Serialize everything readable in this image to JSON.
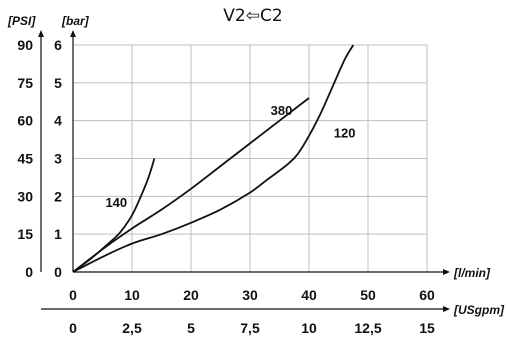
{
  "chart_data": {
    "type": "line",
    "title": "V2⇦C2",
    "x": {
      "unit": "[l/min]",
      "ticks": [
        0,
        10,
        20,
        30,
        40,
        50,
        60
      ],
      "range": [
        0,
        60
      ]
    },
    "x_secondary": {
      "unit": "[USgpm]",
      "tick_labels": [
        "0",
        "2,5",
        "5",
        "7,5",
        "10",
        "12,5",
        "15"
      ]
    },
    "y": {
      "unit": "[bar]",
      "ticks": [
        0,
        1,
        2,
        3,
        4,
        5,
        6
      ],
      "range": [
        0,
        6
      ]
    },
    "y_secondary": {
      "unit": "[PSI]",
      "tick_labels": [
        "0",
        "15",
        "30",
        "45",
        "60",
        "75",
        "90"
      ]
    },
    "grid": true,
    "series": [
      {
        "name": "140",
        "points": [
          [
            0,
            0
          ],
          [
            3,
            0.35
          ],
          [
            6,
            0.75
          ],
          [
            8,
            1.05
          ],
          [
            10,
            1.5
          ],
          [
            11.5,
            2.0
          ],
          [
            12.8,
            2.5
          ],
          [
            13.8,
            3.0
          ]
        ]
      },
      {
        "name": "380",
        "points": [
          [
            0,
            0
          ],
          [
            5,
            0.6
          ],
          [
            10,
            1.15
          ],
          [
            15,
            1.65
          ],
          [
            20,
            2.2
          ],
          [
            25,
            2.8
          ],
          [
            30,
            3.4
          ],
          [
            35,
            4.0
          ],
          [
            40,
            4.6
          ]
        ]
      },
      {
        "name": "120",
        "points": [
          [
            0,
            0
          ],
          [
            5,
            0.4
          ],
          [
            10,
            0.75
          ],
          [
            15,
            1.0
          ],
          [
            20,
            1.3
          ],
          [
            25,
            1.65
          ],
          [
            30,
            2.1
          ],
          [
            33,
            2.45
          ],
          [
            36,
            2.8
          ],
          [
            38,
            3.1
          ],
          [
            40,
            3.6
          ],
          [
            42,
            4.2
          ],
          [
            44,
            4.9
          ],
          [
            46,
            5.6
          ],
          [
            47.5,
            6.0
          ]
        ]
      }
    ],
    "series_labels": [
      {
        "text": "140",
        "x": 5.5,
        "y": 1.72
      },
      {
        "text": "380",
        "x": 33.5,
        "y": 4.15
      },
      {
        "text": "120",
        "x": 44.2,
        "y": 3.55
      }
    ]
  }
}
